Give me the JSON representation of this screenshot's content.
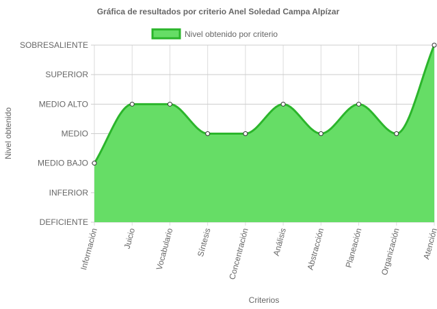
{
  "chart_data": {
    "type": "area",
    "title": "Gráfica de resultados por criterio Anel Soledad Campa Alpízar",
    "xlabel": "Criterios",
    "ylabel": "Nivel obtenido",
    "y_levels": [
      "DEFICIENTE",
      "INFERIOR",
      "MEDIO BAJO",
      "MEDIO",
      "MEDIO ALTO",
      "SUPERIOR",
      "SOBRESALIENTE"
    ],
    "ylim": [
      0,
      6
    ],
    "categories": [
      "Información",
      "Juicio",
      "Vocabulario",
      "Síntesis",
      "Concentración",
      "Análisis",
      "Abstracción",
      "Planeación",
      "Organización",
      "Atención"
    ],
    "series": [
      {
        "name": "Nivel obtenido por criterio",
        "values": [
          2,
          4,
          4,
          3,
          3,
          4,
          3,
          4,
          3,
          6
        ],
        "labels": [
          "MEDIO BAJO",
          "MEDIO ALTO",
          "MEDIO ALTO",
          "MEDIO",
          "MEDIO",
          "MEDIO ALTO",
          "MEDIO",
          "MEDIO ALTO",
          "MEDIO",
          "SOBRESALIENTE"
        ]
      }
    ],
    "grid": true,
    "legend": "top",
    "colors": {
      "fill": "#66dd66",
      "line": "#2bb52b",
      "point_fill": "#ffffff",
      "point_stroke": "#333333",
      "grid": "#cccccc"
    }
  }
}
